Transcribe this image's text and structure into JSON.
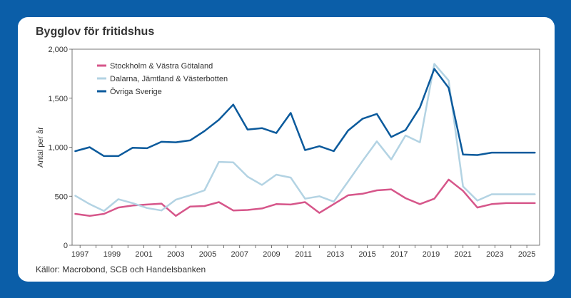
{
  "chart_data": {
    "type": "line",
    "title": "Bygglov för fritidshus",
    "ylabel": "Antal per år",
    "xlabel": "",
    "ylim": [
      0,
      2000
    ],
    "xlim": [
      1996.5,
      2025.8
    ],
    "yticks": [
      0,
      500,
      1000,
      1500,
      2000
    ],
    "ytick_labels": [
      "0",
      "500",
      "1,000",
      "1,500",
      "2,000"
    ],
    "xticks": [
      1997,
      1999,
      2001,
      2003,
      2005,
      2007,
      2009,
      2011,
      2013,
      2015,
      2017,
      2019,
      2021,
      2023,
      2025
    ],
    "xtick_labels": [
      "1997",
      "1999",
      "2001",
      "2003",
      "2005",
      "2007",
      "2009",
      "2011",
      "2013",
      "2015",
      "2017",
      "2019",
      "2021",
      "2023",
      "2025"
    ],
    "grid": false,
    "legend_position": "top-left",
    "x": [
      1996.7,
      1997.6,
      1998.5,
      1999.4,
      2000.3,
      2001.2,
      2002.1,
      2003.0,
      2003.9,
      2004.8,
      2005.7,
      2006.6,
      2007.5,
      2008.4,
      2009.3,
      2010.2,
      2011.1,
      2012.0,
      2012.9,
      2013.8,
      2014.7,
      2015.6,
      2016.5,
      2017.4,
      2018.3,
      2019.2,
      2020.1,
      2021.0,
      2021.9,
      2022.8,
      2023.7,
      2024.6,
      2025.5
    ],
    "series": [
      {
        "name": "Stockholm & Västra Götaland",
        "color": "#d6568a",
        "values": [
          320,
          300,
          320,
          385,
          405,
          415,
          425,
          300,
          395,
          400,
          440,
          355,
          360,
          375,
          420,
          415,
          440,
          330,
          420,
          510,
          525,
          560,
          570,
          480,
          420,
          475,
          670,
          555,
          385,
          420,
          430,
          430,
          430
        ]
      },
      {
        "name": "Dalarna, Jämtland & Västerbotten",
        "color": "#b3d3e3",
        "values": [
          505,
          420,
          350,
          470,
          430,
          380,
          355,
          465,
          510,
          560,
          850,
          845,
          700,
          615,
          720,
          690,
          475,
          500,
          445,
          650,
          860,
          1060,
          875,
          1120,
          1050,
          1850,
          1680,
          600,
          455,
          520,
          520,
          520,
          520
        ]
      },
      {
        "name": "Övriga Sverige",
        "color": "#0b5a9c",
        "values": [
          960,
          1000,
          910,
          910,
          995,
          990,
          1055,
          1050,
          1070,
          1165,
          1280,
          1435,
          1180,
          1195,
          1145,
          1350,
          970,
          1010,
          960,
          1170,
          1290,
          1340,
          1105,
          1175,
          1405,
          1800,
          1605,
          925,
          920,
          945,
          945,
          945,
          945
        ]
      }
    ]
  },
  "source": "Källor: Macrobond, SCB och Handelsbanken"
}
